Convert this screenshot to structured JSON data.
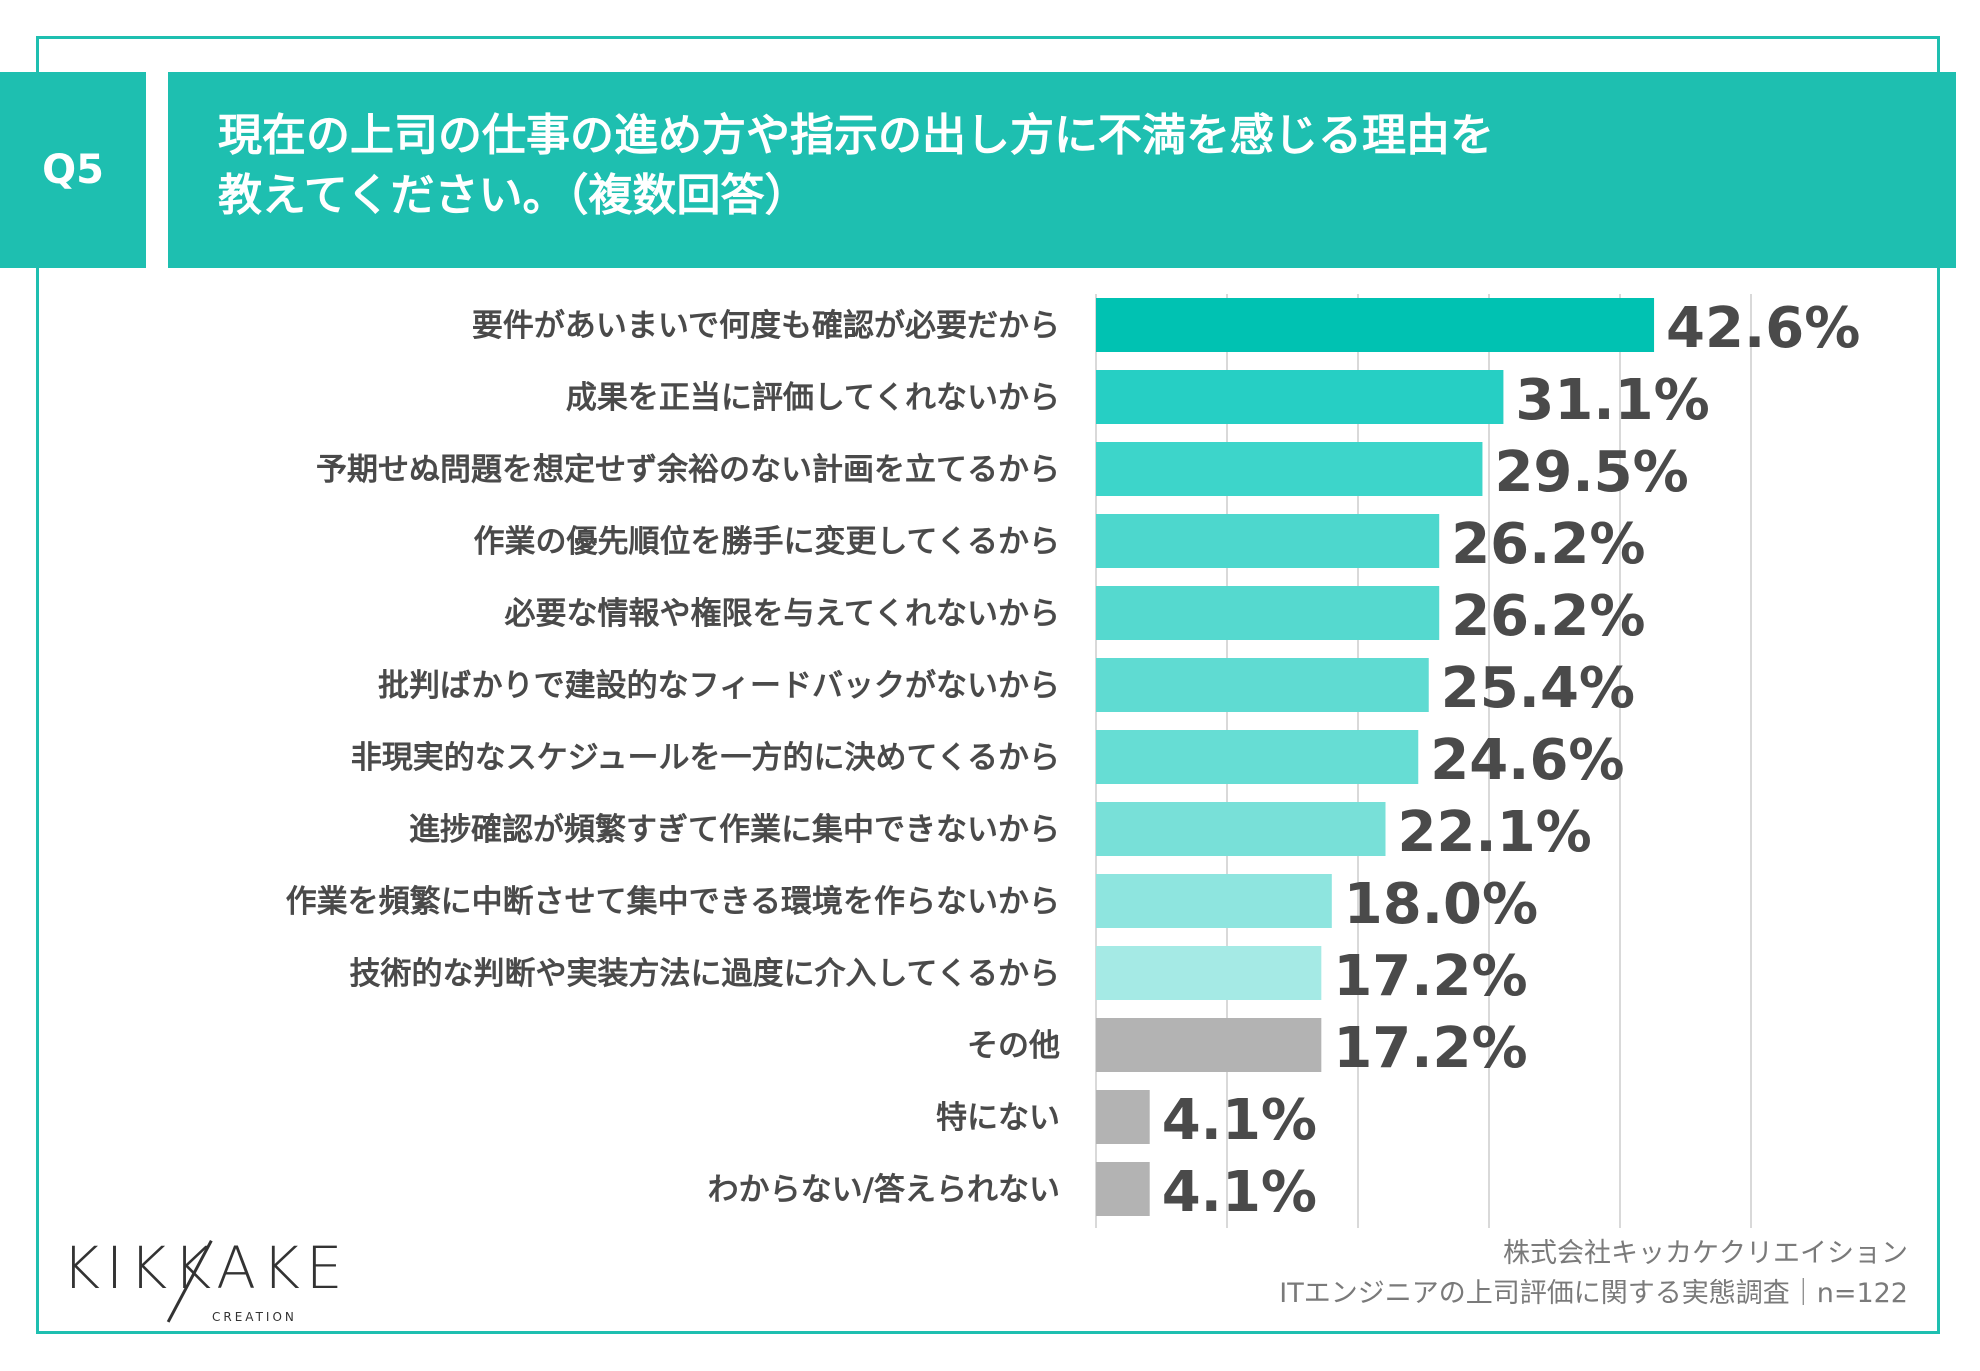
{
  "header": {
    "badge": "Q5",
    "title_line1": "現在の上司の仕事の進め方や指示の出し方に不満を感じる理由を",
    "title_line2": "教えてください。（複数回答）"
  },
  "chart_data": {
    "type": "bar",
    "orientation": "horizontal",
    "title": "現在の上司の仕事の進め方や指示の出し方に不満を感じる理由を教えてください。（複数回答）",
    "categories": [
      "要件があいまいで何度も確認が必要だから",
      "成果を正当に評価してくれないから",
      "予期せぬ問題を想定せず余裕のない計画を立てるから",
      "作業の優先順位を勝手に変更してくるから",
      "必要な情報や権限を与えてくれないから",
      "批判ばかりで建設的なフィードバックがないから",
      "非現実的なスケジュールを一方的に決めてくるから",
      "進捗確認が頻繁すぎて作業に集中できないから",
      "作業を頻繁に中断させて集中できる環境を作らないから",
      "技術的な判断や実装方法に過度に介入してくるから",
      "その他",
      "特にない",
      "わからない/答えられない"
    ],
    "values": [
      42.6,
      31.1,
      29.5,
      26.2,
      26.2,
      25.4,
      24.6,
      22.1,
      18.0,
      17.2,
      17.2,
      4.1,
      4.1
    ],
    "value_labels": [
      "42.6%",
      "31.1%",
      "29.5%",
      "26.2%",
      "26.2%",
      "25.4%",
      "24.6%",
      "22.1%",
      "18.0%",
      "17.2%",
      "17.2%",
      "4.1%",
      "4.1%"
    ],
    "colors": [
      "#00c2b2",
      "#26cfc4",
      "#3dd5ca",
      "#4dd7cd",
      "#55d9cf",
      "#5fdbd2",
      "#66ddd4",
      "#78e0d8",
      "#8ee5df",
      "#a5eae5",
      "#b3b3b3",
      "#b3b3b3",
      "#b3b3b3"
    ],
    "xlim": [
      0,
      60
    ],
    "grid": true,
    "xlabel": "",
    "ylabel": "",
    "unit": "%"
  },
  "footer": {
    "logo_text": "KIKKAKE",
    "logo_sub": "CREATION",
    "source_line1": "株式会社キッカケクリエイション",
    "source_line2": "ITエンジニアの上司評価に関する実態調査｜n=122"
  }
}
